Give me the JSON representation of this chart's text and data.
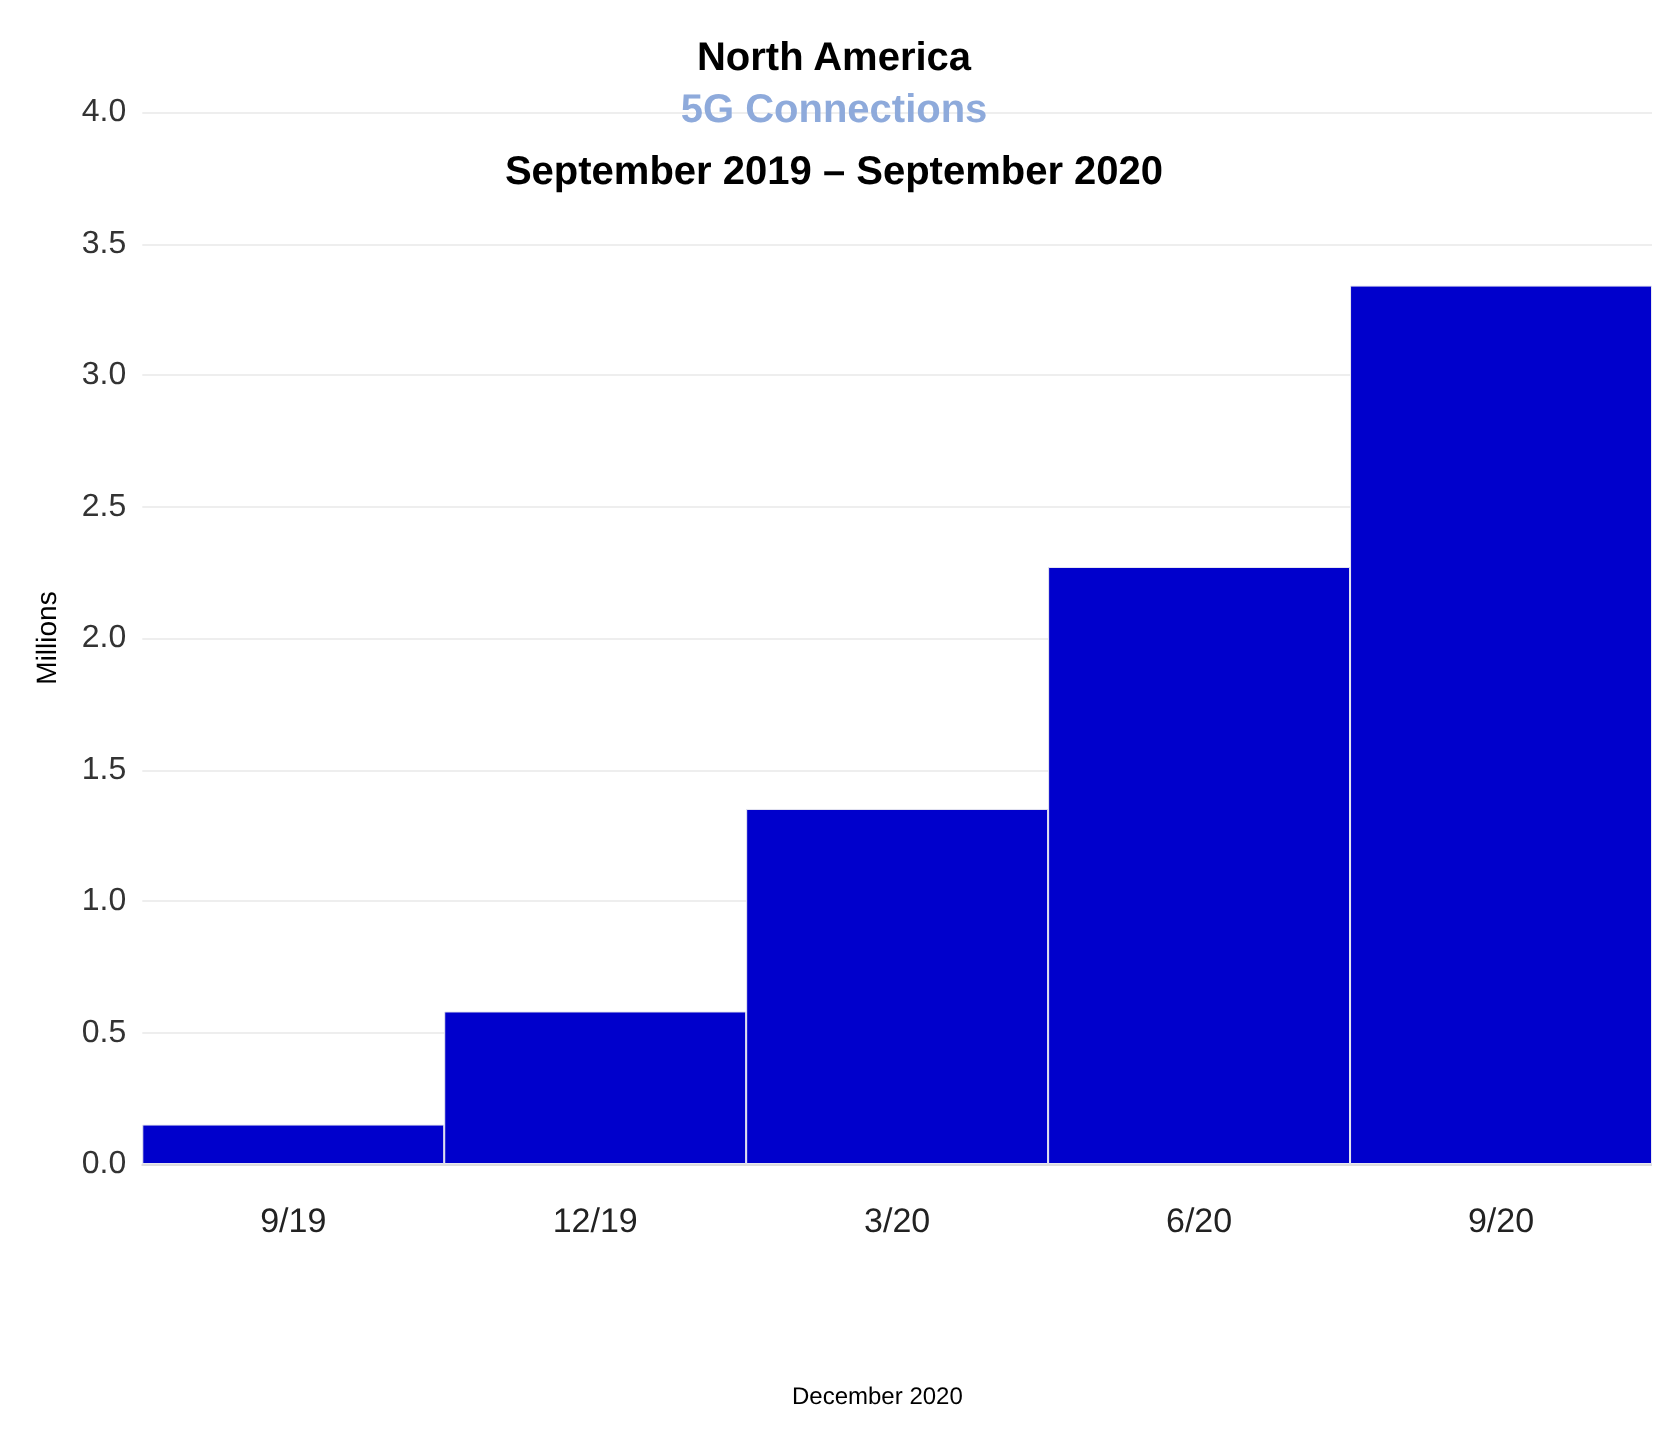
{
  "chart_data": {
    "type": "bar",
    "title": "North America",
    "subtitle": "5G Connections",
    "annotations": [
      "September 2019 – September 2020",
      "December 2020"
    ],
    "ylabel": "Millions",
    "categories": [
      "9/19",
      "12/19",
      "3/20",
      "6/20",
      "9/20"
    ],
    "values": [
      0.15,
      0.58,
      1.35,
      2.27,
      3.34
    ],
    "color": "#0000cc",
    "ylim": [
      0,
      4
    ],
    "yticks": [
      {
        "value": 0,
        "label": "0.0"
      },
      {
        "value": 0.5,
        "label": "0.5"
      },
      {
        "value": 1,
        "label": "1.0"
      },
      {
        "value": 1.5,
        "label": "1.5"
      },
      {
        "value": 2,
        "label": "2.0"
      },
      {
        "value": 2.5,
        "label": "2.5"
      },
      {
        "value": 3,
        "label": "3.0"
      },
      {
        "value": 3.5,
        "label": "3.5"
      },
      {
        "value": 4,
        "label": "4.0"
      }
    ],
    "grid": "y"
  }
}
